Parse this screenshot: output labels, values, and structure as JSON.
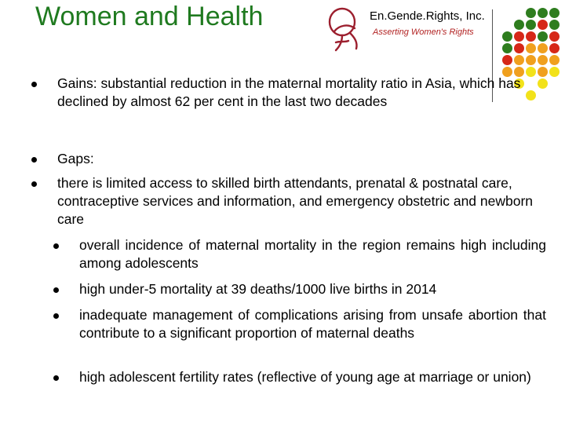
{
  "header": {
    "title": "Women and Health",
    "org_name": "En.Gende.Rights, Inc.",
    "org_tagline": "Asserting Women's Rights"
  },
  "colors": {
    "title": "#1f7a1f",
    "dot_green": "#2e7d1e",
    "dot_red": "#d62718",
    "dot_orange": "#f0a01e",
    "dot_yellow": "#f2e21a",
    "logo": "#9c1f2e"
  },
  "bullets": [
    {
      "level": 1,
      "text": "Gains: substantial reduction in the maternal mortality ratio in Asia, which has declined by almost 62 per cent in the last two decades"
    },
    {
      "level": 1,
      "text": "Gaps:"
    },
    {
      "level": 1,
      "text": "there is limited access to skilled birth attendants, prenatal & postnatal care, contraceptive services and information, and emergency obstetric and newborn care"
    },
    {
      "level": 2,
      "text": "overall incidence of maternal mortality in the region remains high including among adolescents"
    },
    {
      "level": 2,
      "text": "high under-5 mortality at 39 deaths/1000 live births in 2014"
    },
    {
      "level": 2,
      "text": "inadequate management of complications arising from unsafe abortion that contribute to a significant proportion of maternal deaths"
    },
    {
      "level": 2,
      "text": "high adolescent fertility rates (reflective of young age at marriage or union)"
    }
  ]
}
